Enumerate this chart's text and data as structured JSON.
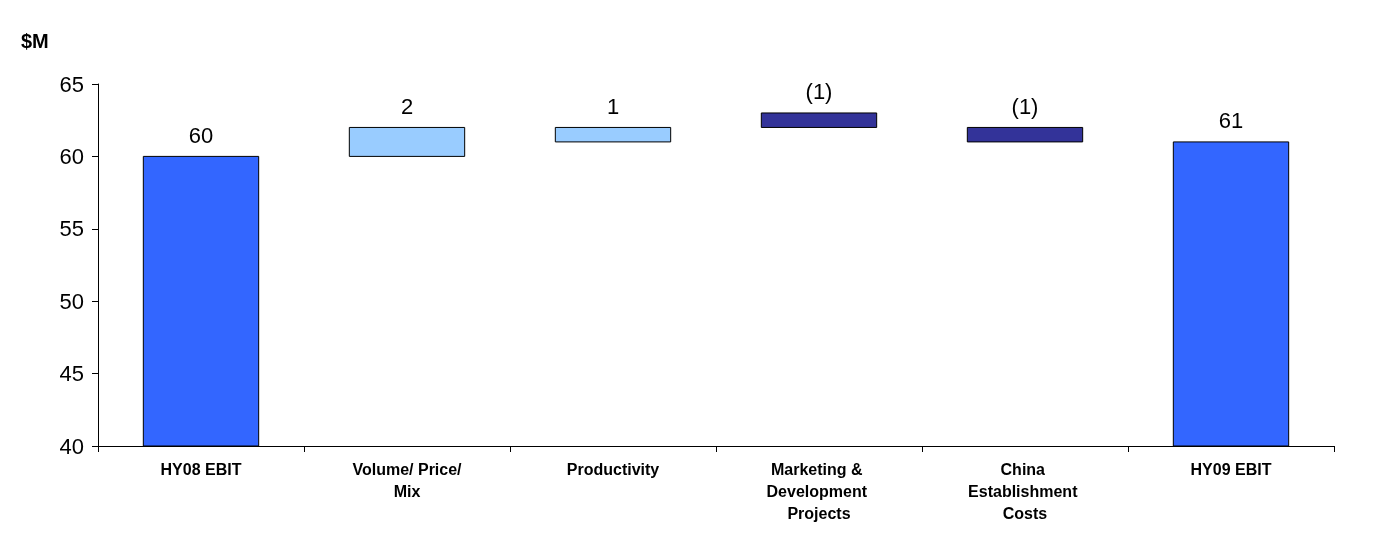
{
  "chart_data": {
    "type": "bar",
    "ylabel": "$M",
    "categories": [
      "HY08 EBIT",
      "Volume/ Price/Mix",
      "Productivity",
      "Marketing & Development Projects",
      "China Establishment Costs",
      "HY09 EBIT"
    ],
    "values": [
      60,
      2,
      1,
      -1,
      -1,
      61
    ],
    "base": [
      null,
      60,
      61,
      63,
      62,
      null
    ],
    "colors": [
      "#3366ff",
      "#99ccff",
      "#99ccff",
      "#333399",
      "#333399",
      "#3366ff"
    ],
    "value_labels": [
      "60",
      "2",
      "1",
      "(1)",
      "(1)",
      "61"
    ],
    "ylim": [
      40,
      65
    ],
    "yticks": [
      40,
      45,
      50,
      55,
      60,
      65
    ],
    "grid": false
  }
}
